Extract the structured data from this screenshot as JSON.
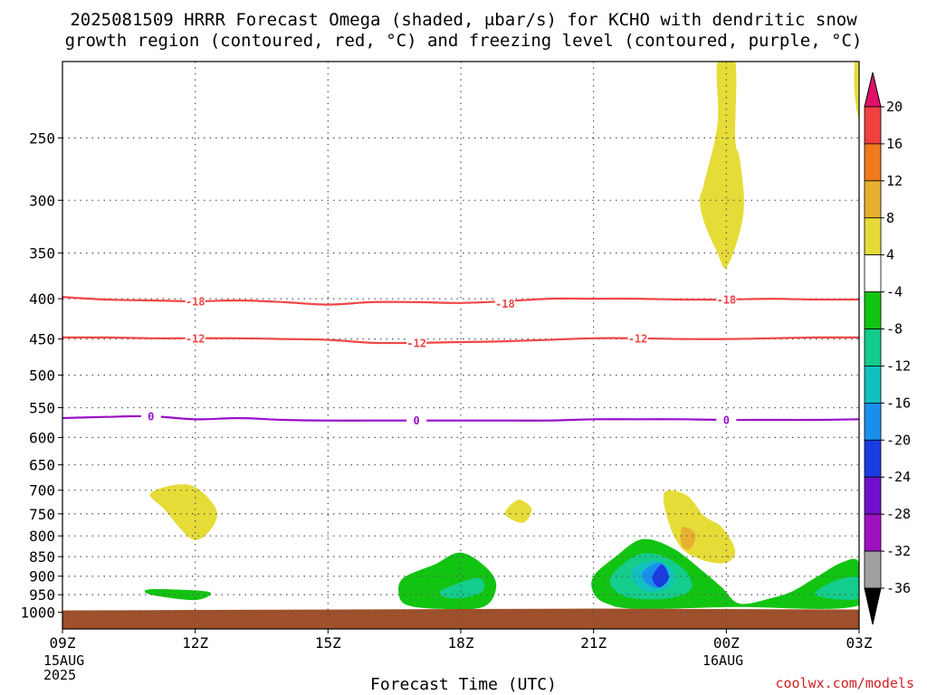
{
  "title_line1": "2025081509 HRRR Forecast Omega (shaded, μbar/s) for KCHO with dendritic snow",
  "title_line2": "growth region (contoured, red, °C) and freezing level (contoured, purple, °C)",
  "credit": "coolwx.com/models",
  "chart_data": {
    "type": "heatmap",
    "title": "2025081509 HRRR Forecast Omega (shaded, μbar/s) for KCHO with dendritic snow growth region (contoured, red, °C) and freezing level (contoured, purple, °C)",
    "xlabel": "Forecast Time (UTC)",
    "ylabel": "",
    "x_unit": "forecast hour from 09Z 15AUG 2025",
    "y_unit": "pressure (hPa)",
    "xlim": [
      0,
      18
    ],
    "ylim": [
      1050,
      200
    ],
    "log_y": true,
    "grid": true,
    "x_ticks": [
      {
        "h": 0,
        "label": "09Z",
        "sub1": "15AUG",
        "sub2": "2025"
      },
      {
        "h": 3,
        "label": "12Z"
      },
      {
        "h": 6,
        "label": "15Z"
      },
      {
        "h": 9,
        "label": "18Z"
      },
      {
        "h": 12,
        "label": "21Z"
      },
      {
        "h": 15,
        "label": "00Z",
        "sub1": "16AUG"
      },
      {
        "h": 18,
        "label": "03Z"
      }
    ],
    "y_ticks": [
      250,
      300,
      350,
      400,
      450,
      500,
      550,
      600,
      650,
      700,
      750,
      800,
      850,
      900,
      950,
      1000
    ],
    "colorbar": {
      "labels": [
        "20",
        "16",
        "12",
        "8",
        "4",
        "-4",
        "-8",
        "-12",
        "-16",
        "-20",
        "-24",
        "-28",
        "-32",
        "-36"
      ],
      "colors": [
        "#e0106a",
        "#f04040",
        "#f07a1c",
        "#e8b030",
        "#e6dc38",
        "#ffffff",
        "#12c412",
        "#14cc8c",
        "#12c0c0",
        "#1a90ee",
        "#1a3ce0",
        "#7010cc",
        "#a010c0",
        "#a0a0a0",
        "#000000"
      ]
    },
    "contours": [
      {
        "name": "-18 °C isotherm",
        "color": "#f04646",
        "level": "-18",
        "points": [
          [
            0,
            398
          ],
          [
            1,
            401
          ],
          [
            2,
            402
          ],
          [
            3,
            403
          ],
          [
            4,
            402
          ],
          [
            5,
            404
          ],
          [
            6,
            407
          ],
          [
            7,
            404
          ],
          [
            8,
            404
          ],
          [
            9,
            405
          ],
          [
            10,
            403
          ],
          [
            11,
            400
          ],
          [
            12,
            400
          ],
          [
            13,
            400
          ],
          [
            14,
            401
          ],
          [
            15,
            401
          ],
          [
            16,
            400
          ],
          [
            17,
            401
          ],
          [
            18,
            401
          ]
        ],
        "labels": [
          [
            3,
            403
          ],
          [
            10,
            406
          ],
          [
            15,
            401
          ]
        ]
      },
      {
        "name": "-12 °C isotherm",
        "color": "#f04646",
        "level": "-12",
        "points": [
          [
            0,
            448
          ],
          [
            1,
            448
          ],
          [
            2,
            449
          ],
          [
            3,
            449
          ],
          [
            4,
            449
          ],
          [
            5,
            450
          ],
          [
            6,
            451
          ],
          [
            7,
            455
          ],
          [
            8,
            455
          ],
          [
            9,
            454
          ],
          [
            10,
            453
          ],
          [
            11,
            451
          ],
          [
            12,
            449
          ],
          [
            13,
            449
          ],
          [
            14,
            450
          ],
          [
            15,
            450
          ],
          [
            16,
            449
          ],
          [
            17,
            448
          ],
          [
            18,
            448
          ]
        ],
        "labels": [
          [
            3,
            449
          ],
          [
            8,
            455
          ],
          [
            13,
            449
          ]
        ]
      },
      {
        "name": "0 °C freezing level",
        "color": "#9a10c8",
        "level": "0",
        "points": [
          [
            0,
            567
          ],
          [
            1,
            565
          ],
          [
            2,
            564
          ],
          [
            3,
            569
          ],
          [
            4,
            567
          ],
          [
            5,
            570
          ],
          [
            6,
            571
          ],
          [
            7,
            571
          ],
          [
            8,
            571
          ],
          [
            9,
            571
          ],
          [
            10,
            571
          ],
          [
            11,
            571
          ],
          [
            12,
            569
          ],
          [
            13,
            569
          ],
          [
            14,
            569
          ],
          [
            15,
            570
          ],
          [
            16,
            570
          ],
          [
            17,
            570
          ],
          [
            18,
            569
          ]
        ],
        "labels": [
          [
            2,
            564
          ],
          [
            8,
            571
          ],
          [
            15,
            570
          ]
        ]
      }
    ],
    "omega_regions": [
      {
        "level": "4",
        "color": "#e6dc38",
        "points": [
          [
            14.8,
            200
          ],
          [
            15.2,
            200
          ],
          [
            15.2,
            250
          ],
          [
            15.3,
            265
          ],
          [
            15.4,
            300
          ],
          [
            15.3,
            330
          ],
          [
            15.0,
            365
          ],
          [
            14.8,
            350
          ],
          [
            14.5,
            320
          ],
          [
            14.4,
            300
          ],
          [
            14.5,
            285
          ],
          [
            14.8,
            240
          ]
        ]
      },
      {
        "level": "4",
        "color": "#e6dc38",
        "points": [
          [
            17.9,
            200
          ],
          [
            18.0,
            200
          ],
          [
            18.0,
            235
          ],
          [
            17.9,
            220
          ]
        ]
      },
      {
        "level": "4",
        "color": "#e6dc38",
        "points": [
          [
            2.0,
            705
          ],
          [
            2.9,
            690
          ],
          [
            3.5,
            750
          ],
          [
            3.0,
            810
          ],
          [
            2.3,
            740
          ]
        ]
      },
      {
        "level": "4",
        "color": "#e6dc38",
        "points": [
          [
            10.0,
            750
          ],
          [
            10.3,
            720
          ],
          [
            10.6,
            740
          ],
          [
            10.4,
            770
          ]
        ]
      },
      {
        "level": "4",
        "color": "#e6dc38",
        "points": [
          [
            13.6,
            705
          ],
          [
            14.1,
            710
          ],
          [
            14.5,
            755
          ],
          [
            14.9,
            780
          ],
          [
            15.2,
            835
          ],
          [
            15.0,
            865
          ],
          [
            14.5,
            860
          ],
          [
            14.0,
            830
          ],
          [
            13.7,
            770
          ]
        ]
      },
      {
        "level": "8",
        "color": "#e8b030",
        "points": [
          [
            14.0,
            780
          ],
          [
            14.3,
            795
          ],
          [
            14.2,
            830
          ],
          [
            14.0,
            825
          ]
        ]
      },
      {
        "level": "-4",
        "color": "#12c412",
        "points": [
          [
            2.0,
            935
          ],
          [
            3.3,
            942
          ],
          [
            3.0,
            965
          ],
          [
            2.0,
            950
          ]
        ]
      },
      {
        "level": "-4",
        "color": "#12c412",
        "points": [
          [
            7.7,
            905
          ],
          [
            8.4,
            870
          ],
          [
            9.0,
            840
          ],
          [
            9.6,
            880
          ],
          [
            9.8,
            930
          ],
          [
            9.5,
            985
          ],
          [
            8.5,
            990
          ],
          [
            7.8,
            980
          ],
          [
            7.6,
            950
          ]
        ]
      },
      {
        "level": "-4",
        "color": "#12c412",
        "points": [
          [
            12.0,
            900
          ],
          [
            12.5,
            850
          ],
          [
            13.1,
            808
          ],
          [
            13.8,
            830
          ],
          [
            14.5,
            890
          ],
          [
            14.9,
            930
          ],
          [
            15.3,
            975
          ],
          [
            16.0,
            960
          ],
          [
            16.5,
            940
          ],
          [
            17.0,
            905
          ],
          [
            17.6,
            865
          ],
          [
            18.0,
            865
          ],
          [
            18.0,
            980
          ],
          [
            15.2,
            985
          ],
          [
            13.0,
            990
          ],
          [
            12.3,
            975
          ],
          [
            12.0,
            945
          ]
        ]
      },
      {
        "level": "-8",
        "color": "#14cc8c",
        "points": [
          [
            8.6,
            935
          ],
          [
            9.4,
            905
          ],
          [
            9.5,
            940
          ],
          [
            9.0,
            960
          ],
          [
            8.6,
            955
          ]
        ]
      },
      {
        "level": "-8",
        "color": "#14cc8c",
        "points": [
          [
            12.4,
            900
          ],
          [
            13.0,
            845
          ],
          [
            13.6,
            850
          ],
          [
            14.1,
            890
          ],
          [
            14.2,
            935
          ],
          [
            13.7,
            960
          ],
          [
            12.9,
            960
          ],
          [
            12.5,
            940
          ]
        ]
      },
      {
        "level": "-8",
        "color": "#14cc8c",
        "points": [
          [
            17.0,
            945
          ],
          [
            17.5,
            910
          ],
          [
            18.0,
            905
          ],
          [
            18.0,
            960
          ],
          [
            17.3,
            960
          ]
        ]
      },
      {
        "level": "-12",
        "color": "#12c0c0",
        "points": [
          [
            12.9,
            880
          ],
          [
            13.4,
            860
          ],
          [
            13.8,
            890
          ],
          [
            13.7,
            930
          ],
          [
            13.2,
            940
          ],
          [
            12.9,
            910
          ]
        ]
      },
      {
        "level": "-16",
        "color": "#1a90ee",
        "points": [
          [
            13.1,
            890
          ],
          [
            13.5,
            865
          ],
          [
            13.7,
            895
          ],
          [
            13.5,
            930
          ],
          [
            13.2,
            920
          ]
        ]
      },
      {
        "level": "-20",
        "color": "#1a3ce0",
        "points": [
          [
            13.35,
            895
          ],
          [
            13.55,
            870
          ],
          [
            13.7,
            905
          ],
          [
            13.5,
            930
          ],
          [
            13.35,
            915
          ]
        ]
      }
    ],
    "terrain": {
      "color": "#a0502a",
      "top_pressure": 1000
    }
  }
}
